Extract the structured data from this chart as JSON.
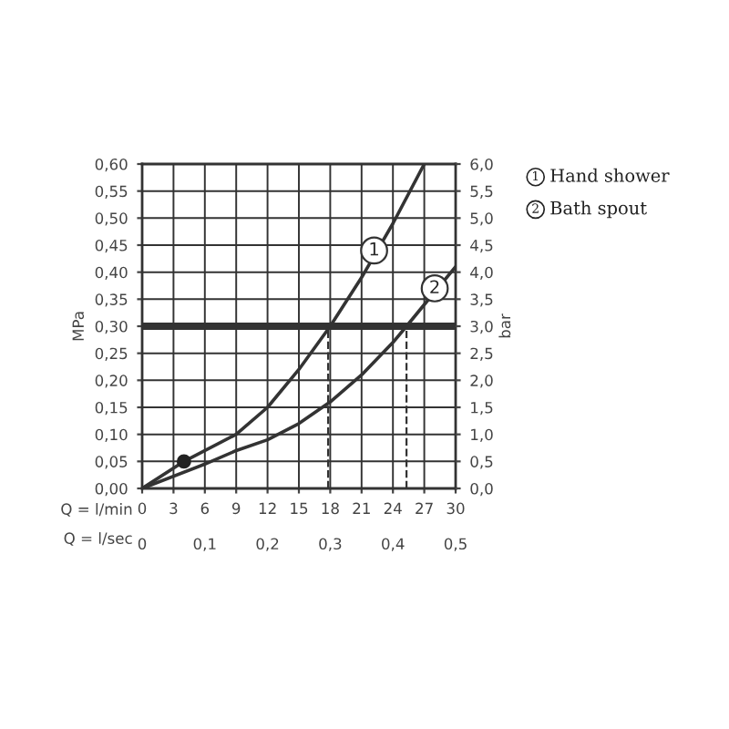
{
  "chart_data": {
    "type": "line",
    "xlabel": "Q = l/min",
    "x2label": "Q = l/sec",
    "ylabel": "MPa",
    "y2label": "bar",
    "xlim": [
      0,
      30
    ],
    "xticks": [
      0,
      3,
      6,
      9,
      12,
      15,
      18,
      21,
      24,
      27,
      30
    ],
    "x2lim": [
      0,
      0.5
    ],
    "x2ticks": [
      {
        "value": 0,
        "label": "0"
      },
      {
        "value": 0.1,
        "label": "0,1"
      },
      {
        "value": 0.2,
        "label": "0,2"
      },
      {
        "value": 0.3,
        "label": "0,3"
      },
      {
        "value": 0.4,
        "label": "0,4"
      },
      {
        "value": 0.5,
        "label": "0,5"
      }
    ],
    "ylim": [
      0,
      0.6
    ],
    "yticks": [
      {
        "value": 0,
        "label": "0,00"
      },
      {
        "value": 0.05,
        "label": "0,05"
      },
      {
        "value": 0.1,
        "label": "0,10"
      },
      {
        "value": 0.15,
        "label": "0,15"
      },
      {
        "value": 0.2,
        "label": "0,20"
      },
      {
        "value": 0.25,
        "label": "0,25"
      },
      {
        "value": 0.3,
        "label": "0,30"
      },
      {
        "value": 0.35,
        "label": "0,35"
      },
      {
        "value": 0.4,
        "label": "0,40"
      },
      {
        "value": 0.45,
        "label": "0,45"
      },
      {
        "value": 0.5,
        "label": "0,50"
      },
      {
        "value": 0.55,
        "label": "0,55"
      },
      {
        "value": 0.6,
        "label": "0,60"
      }
    ],
    "y2lim": [
      0,
      6
    ],
    "y2ticks": [
      {
        "value": 0,
        "label": "0,0"
      },
      {
        "value": 0.5,
        "label": "0,5"
      },
      {
        "value": 1,
        "label": "1,0"
      },
      {
        "value": 1.5,
        "label": "1,5"
      },
      {
        "value": 2,
        "label": "2,0"
      },
      {
        "value": 2.5,
        "label": "2,5"
      },
      {
        "value": 3,
        "label": "3,0"
      },
      {
        "value": 3.5,
        "label": "3,5"
      },
      {
        "value": 4,
        "label": "4,0"
      },
      {
        "value": 4.5,
        "label": "4,5"
      },
      {
        "value": 5,
        "label": "5,0"
      },
      {
        "value": 5.5,
        "label": "5,5"
      },
      {
        "value": 6,
        "label": "6,0"
      }
    ],
    "grid": true,
    "line_style": "solid",
    "series": [
      {
        "color": "#333333",
        "x": [
          0,
          4,
          9,
          12,
          15,
          18,
          21,
          24,
          27
        ],
        "values": [
          0,
          0.05,
          0.1,
          0.15,
          0.22,
          0.3,
          0.39,
          0.49,
          0.6
        ]
      },
      {
        "color": "#333333",
        "x": [
          0,
          6,
          9,
          12,
          15,
          18,
          21,
          24,
          25.3,
          27,
          30
        ],
        "values": [
          0,
          0.045,
          0.07,
          0.09,
          0.12,
          0.16,
          0.21,
          0.27,
          0.3,
          0.34,
          0.41
        ]
      },
      {
        "type": "scatter",
        "color": "#222222",
        "x": [
          4
        ],
        "values": [
          0.05
        ]
      }
    ],
    "ref_lines": [
      {
        "axis": "y",
        "value": 0.3,
        "color": "#333333",
        "line_style": "solid"
      },
      {
        "axis": "x",
        "value": 17.8,
        "color": "#333333",
        "line_style": "dashed"
      },
      {
        "axis": "x",
        "value": 25.3,
        "color": "#333333",
        "line_style": "dashed"
      }
    ],
    "annotations": [
      {
        "text": "1",
        "x": 22.2,
        "y": 0.44
      },
      {
        "text": "2",
        "x": 28.0,
        "y": 0.37
      },
      "1",
      "Hand shower",
      "2",
      "Bath spout"
    ]
  }
}
